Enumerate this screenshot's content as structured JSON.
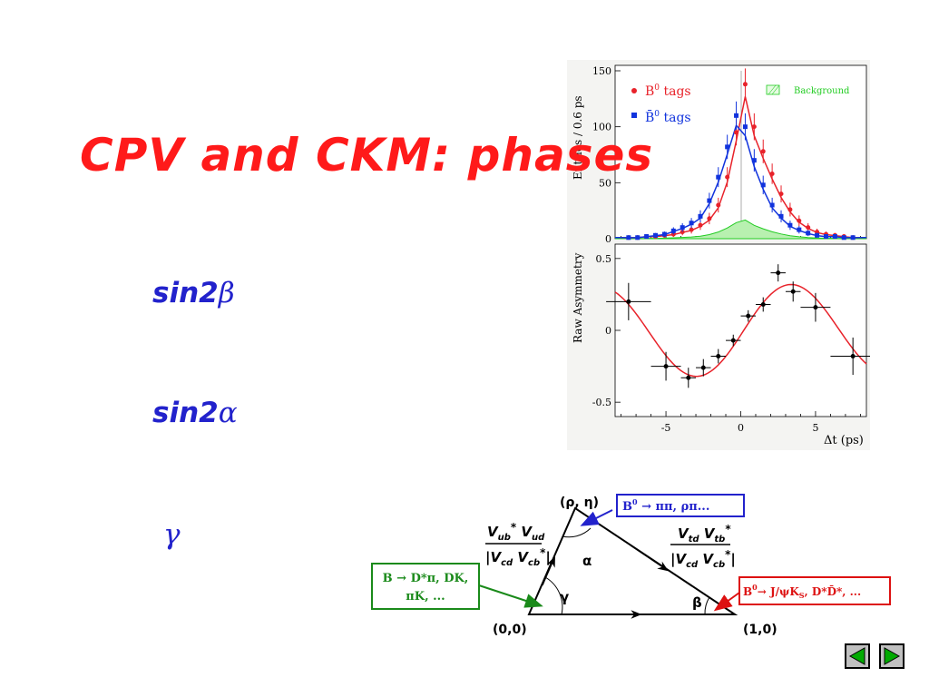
{
  "slide": {
    "title": "CPV and CKM: phases",
    "bullets": [
      {
        "prefix": "sin2",
        "greek": "β"
      },
      {
        "prefix": "sin2",
        "greek": "α"
      },
      {
        "prefix": "",
        "greek": "γ"
      }
    ]
  },
  "chart_data": [
    {
      "type": "scatter",
      "ylabel": "Entries / 0.6 ps",
      "ylim": [
        0,
        150
      ],
      "xlim": [
        -8.4,
        8.4
      ],
      "yticks": [
        0,
        50,
        100,
        150
      ],
      "legend": [
        {
          "label": "B",
          "sup": "0",
          "suffix": " tags",
          "color": "#e8222a"
        },
        {
          "label": "B̄",
          "sup": "0",
          "suffix": " tags",
          "color": "#1133dd"
        },
        {
          "label": "Background",
          "color": "#22cc22"
        }
      ],
      "series": [
        {
          "name": "B0 tags",
          "color": "#e8222a",
          "x": [
            -7.5,
            -6.9,
            -6.3,
            -5.7,
            -5.1,
            -4.5,
            -3.9,
            -3.3,
            -2.7,
            -2.1,
            -1.5,
            -0.9,
            -0.3,
            0.3,
            0.9,
            1.5,
            2.1,
            2.7,
            3.3,
            3.9,
            4.5,
            5.1,
            5.7,
            6.3,
            6.9,
            7.5
          ],
          "y": [
            1,
            1,
            2,
            2,
            3,
            4,
            6,
            8,
            12,
            18,
            30,
            55,
            95,
            138,
            100,
            78,
            58,
            40,
            26,
            16,
            10,
            6,
            4,
            3,
            2,
            1
          ]
        },
        {
          "name": "B0bar tags",
          "color": "#1133dd",
          "x": [
            -7.5,
            -6.9,
            -6.3,
            -5.7,
            -5.1,
            -4.5,
            -3.9,
            -3.3,
            -2.7,
            -2.1,
            -1.5,
            -0.9,
            -0.3,
            0.3,
            0.9,
            1.5,
            2.1,
            2.7,
            3.3,
            3.9,
            4.5,
            5.1,
            5.7,
            6.3,
            6.9,
            7.5
          ],
          "y": [
            1,
            1,
            2,
            3,
            4,
            7,
            10,
            14,
            20,
            34,
            55,
            82,
            110,
            100,
            70,
            48,
            30,
            20,
            12,
            8,
            5,
            3,
            2,
            2,
            1,
            1
          ]
        }
      ]
    },
    {
      "type": "scatter",
      "ylabel": "Raw Asymmetry",
      "xlabel": "Δt (ps)",
      "ylim": [
        -0.6,
        0.6
      ],
      "xlim": [
        -8.4,
        8.4
      ],
      "yticks": [
        -0.5,
        0,
        0.5
      ],
      "ytick_labels": [
        "-0.5",
        "0",
        "0.5"
      ],
      "xticks": [
        -5,
        0,
        5
      ],
      "xtick_labels": [
        "-5",
        "0",
        "5"
      ],
      "series": [
        {
          "name": "data",
          "x": [
            -7.5,
            -5,
            -3.5,
            -2.5,
            -1.5,
            -0.5,
            0.5,
            1.5,
            2.5,
            3.5,
            5,
            7.5
          ],
          "y": [
            0.2,
            -0.25,
            -0.33,
            -0.26,
            -0.18,
            -0.07,
            0.1,
            0.18,
            0.4,
            0.27,
            0.16,
            -0.18
          ],
          "xerr": [
            1.5,
            1.0,
            0.5,
            0.5,
            0.5,
            0.5,
            0.5,
            0.5,
            0.5,
            0.5,
            1.0,
            1.5
          ],
          "yerr": [
            0.13,
            0.1,
            0.07,
            0.06,
            0.05,
            0.04,
            0.04,
            0.05,
            0.06,
            0.07,
            0.1,
            0.13
          ]
        }
      ]
    }
  ],
  "triangle": {
    "vertex_top": "(ρ, η)",
    "vertex_left": "(0,0)",
    "vertex_right": "(1,0)",
    "angle_alpha": "α",
    "angle_beta": "β",
    "angle_gamma": "γ",
    "left_side": {
      "num_a": "V",
      "num_a_sub": "ub",
      "num_a_sup": "*",
      "num_b": " V",
      "num_b_sub": "ud",
      "den_a": "|V",
      "den_a_sub": "cd",
      "den_b": " V",
      "den_b_sub": "cb",
      "den_b_sup": "*",
      "den_end": "|"
    },
    "right_side": {
      "num_a": "V",
      "num_a_sub": "td",
      "num_b": " V",
      "num_b_sub": "tb",
      "num_b_sup": "*",
      "den_a": "|V",
      "den_a_sub": "cd",
      "den_b": " V",
      "den_b_sub": "cb",
      "den_b_sup": "*",
      "den_end": "|"
    },
    "box_blue": {
      "text_a": "B",
      "sup": "0",
      "text_b": " → ππ, ρπ...",
      "color": "#2222cc"
    },
    "box_green": {
      "line1": "B → D*π, DK,",
      "line2": "πK, ...",
      "color": "#1a8a1a"
    },
    "box_red": {
      "text_a": "B",
      "sup": "0",
      "text_b": "→ J/ψK",
      "sub": "S",
      "text_c": ",  D*D̄*, ...",
      "color": "#dd1111"
    }
  },
  "nav": {
    "color": "#00aa00"
  }
}
